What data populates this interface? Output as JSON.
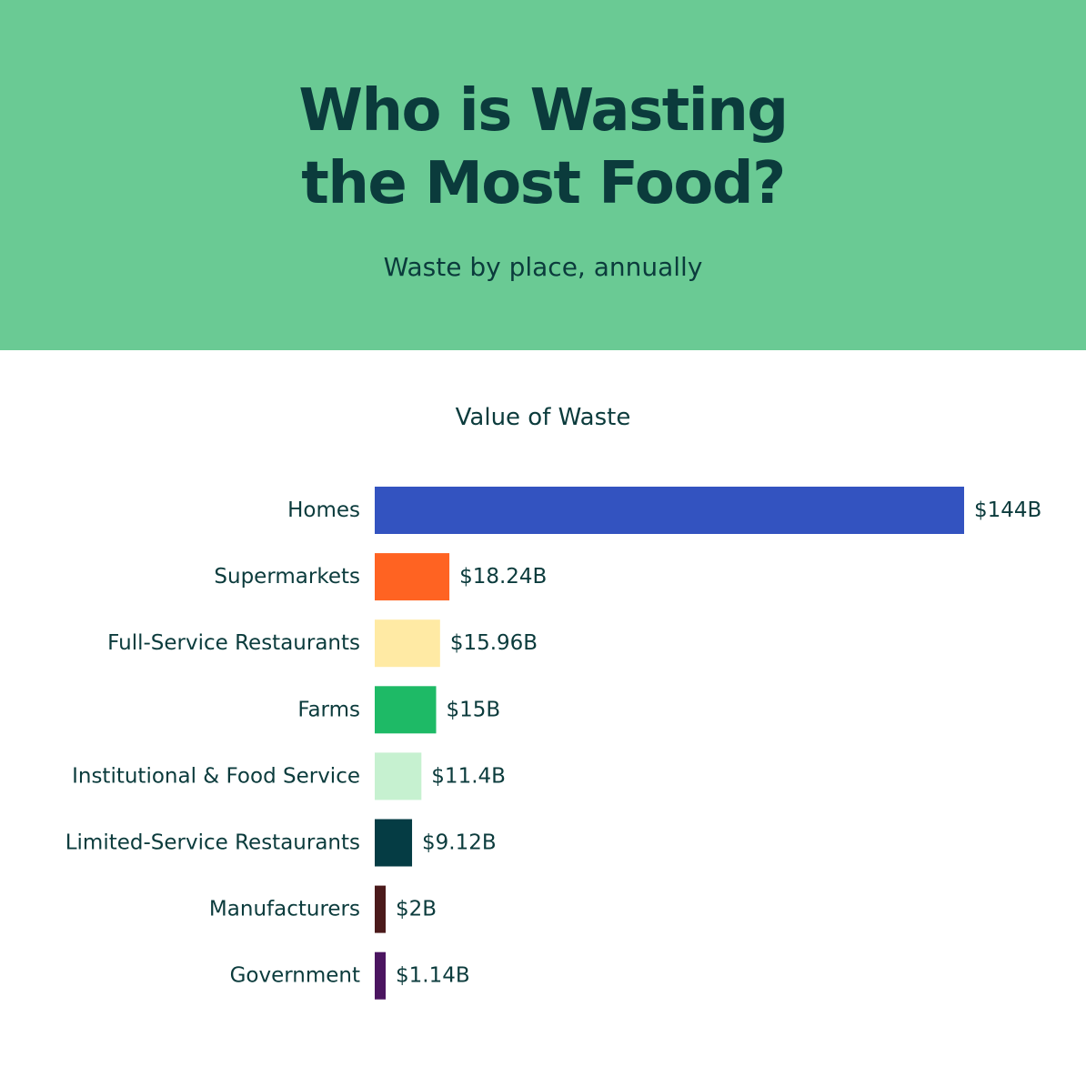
{
  "header": {
    "title_line1": "Who is Wasting",
    "title_line2": "the Most Food?",
    "subtitle": "Waste by place, annually",
    "background": "#6aca94"
  },
  "chart_data": {
    "type": "bar",
    "orientation": "horizontal",
    "title": "Value of Waste",
    "unit": "billion USD",
    "categories": [
      "Homes",
      "Supermarkets",
      "Full-Service Restaurants",
      "Farms",
      "Institutional & Food Service",
      "Limited-Service Restaurants",
      "Manufacturers",
      "Government"
    ],
    "values": [
      144,
      18.24,
      15.96,
      15,
      11.4,
      9.12,
      2,
      1.14
    ],
    "value_labels": [
      "$144B",
      "$18.24B",
      "$15.96B",
      "$15B",
      "$11.4B",
      "$9.12B",
      "$2B",
      "$1.14B"
    ],
    "colors": [
      "#3353c0",
      "#ff6322",
      "#ffeaa4",
      "#1eba66",
      "#c6f1d0",
      "#053c44",
      "#4b1a1b",
      "#4b1560"
    ],
    "grid": false,
    "legend": "none"
  }
}
